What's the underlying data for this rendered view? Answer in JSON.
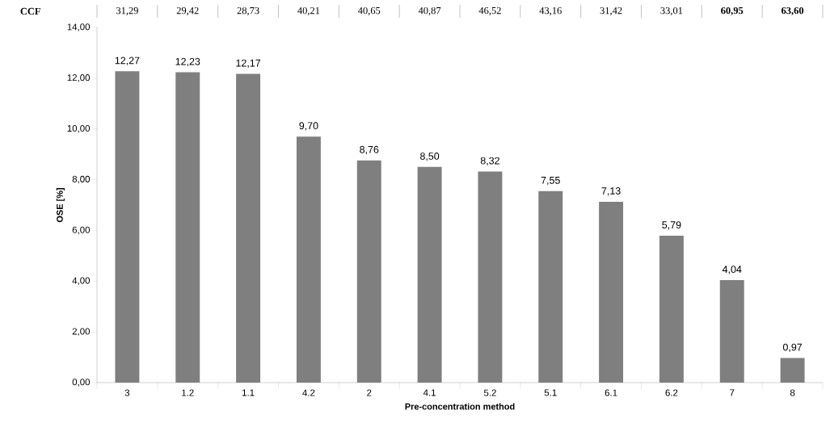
{
  "chart_data": {
    "type": "bar",
    "xlabel": "Pre-concentration method",
    "ylabel": "OSE  [%]",
    "categories": [
      "3",
      "1.2",
      "1.1",
      "4.2",
      "2",
      "4.1",
      "5.2",
      "5.1",
      "6.1",
      "6.2",
      "7",
      "8"
    ],
    "values": [
      12.27,
      12.23,
      12.17,
      9.7,
      8.76,
      8.5,
      8.32,
      7.55,
      7.13,
      5.79,
      4.04,
      0.97
    ],
    "value_labels": [
      "12,27",
      "12,23",
      "12,17",
      "9,70",
      "8,76",
      "8,50",
      "8,32",
      "7,55",
      "7,13",
      "5,79",
      "4,04",
      "0,97"
    ],
    "color": "#7f7f7f",
    "ylim": [
      0,
      14
    ],
    "yticks": [
      {
        "value": 0,
        "label": "0,00"
      },
      {
        "value": 2,
        "label": "2,00"
      },
      {
        "value": 4,
        "label": "4,00"
      },
      {
        "value": 6,
        "label": "6,00"
      },
      {
        "value": 8,
        "label": "8,00"
      },
      {
        "value": 10,
        "label": "10,00"
      },
      {
        "value": 12,
        "label": "12,00"
      },
      {
        "value": 14,
        "label": "14,00"
      }
    ],
    "annotations": [
      "CCF",
      "31,29",
      "29,42",
      "28,73",
      "40,21",
      "40,65",
      "40,87",
      "46,52",
      "43,16",
      "31,42",
      "33,01",
      "**60,95**",
      "**63,60**"
    ]
  }
}
